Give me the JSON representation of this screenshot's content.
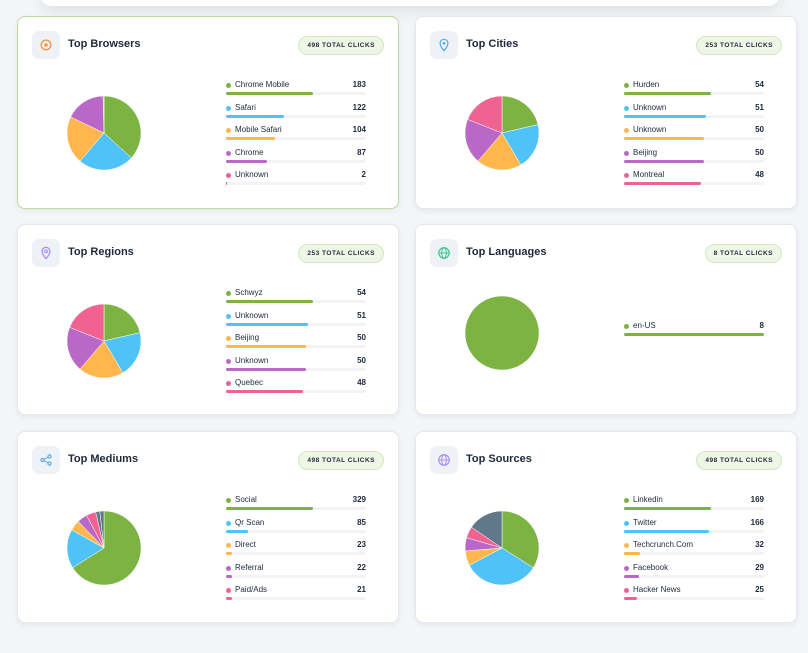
{
  "cards": [
    {
      "id": "browsers",
      "title": "Top Browsers",
      "badge": "498 TOTAL CLICKS",
      "icon": "compass-icon",
      "icon_color": "#f2994a",
      "items": [
        {
          "label": "Chrome Mobile",
          "value": 183,
          "color": "#7cb342"
        },
        {
          "label": "Safari",
          "value": 122,
          "color": "#4fc3f7"
        },
        {
          "label": "Mobile Safari",
          "value": 104,
          "color": "#ffb74d"
        },
        {
          "label": "Chrome",
          "value": 87,
          "color": "#ba68c8"
        },
        {
          "label": "Unknown",
          "value": 2,
          "color": "#f06292"
        }
      ]
    },
    {
      "id": "cities",
      "title": "Top Cities",
      "badge": "253 TOTAL CLICKS",
      "icon": "map-pin-icon",
      "icon_color": "#5aa9e6",
      "items": [
        {
          "label": "Hurden",
          "value": 54,
          "color": "#7cb342"
        },
        {
          "label": "Unknown",
          "value": 51,
          "color": "#4fc3f7"
        },
        {
          "label": "Unknown",
          "value": 50,
          "color": "#ffb74d"
        },
        {
          "label": "Beijing",
          "value": 50,
          "color": "#ba68c8"
        },
        {
          "label": "Montreal",
          "value": 48,
          "color": "#f06292"
        }
      ]
    },
    {
      "id": "regions",
      "title": "Top Regions",
      "badge": "253 TOTAL CLICKS",
      "icon": "location-icon",
      "icon_color": "#a78bfa",
      "items": [
        {
          "label": "Schwyz",
          "value": 54,
          "color": "#7cb342"
        },
        {
          "label": "Unknown",
          "value": 51,
          "color": "#4fc3f7"
        },
        {
          "label": "Beijing",
          "value": 50,
          "color": "#ffb74d"
        },
        {
          "label": "Unknown",
          "value": 50,
          "color": "#ba68c8"
        },
        {
          "label": "Quebec",
          "value": 48,
          "color": "#f06292"
        }
      ]
    },
    {
      "id": "languages",
      "title": "Top Languages",
      "badge": "8 TOTAL CLICKS",
      "icon": "globe-icon",
      "icon_color": "#34c38f",
      "items": [
        {
          "label": "en-US",
          "value": 8,
          "color": "#7cb342"
        }
      ]
    },
    {
      "id": "mediums",
      "title": "Top Mediums",
      "badge": "498 TOTAL CLICKS",
      "icon": "share-icon",
      "icon_color": "#5aa9e6",
      "items": [
        {
          "label": "Social",
          "value": 329,
          "color": "#7cb342"
        },
        {
          "label": "Qr Scan",
          "value": 85,
          "color": "#4fc3f7"
        },
        {
          "label": "Direct",
          "value": 23,
          "color": "#ffb74d"
        },
        {
          "label": "Referral",
          "value": 22,
          "color": "#ba68c8"
        },
        {
          "label": "Paid/Ads",
          "value": 21,
          "color": "#f06292"
        }
      ],
      "extra_slices": [
        {
          "value": 9,
          "color": "#60788a"
        },
        {
          "value": 9,
          "color": "#60788a"
        }
      ]
    },
    {
      "id": "sources",
      "title": "Top Sources",
      "badge": "498 TOTAL CLICKS",
      "icon": "globe-icon",
      "icon_color": "#a78bfa",
      "items": [
        {
          "label": "Linkedin",
          "value": 169,
          "color": "#7cb342"
        },
        {
          "label": "Twitter",
          "value": 166,
          "color": "#4fc3f7"
        },
        {
          "label": "Techcrunch.Com",
          "value": 32,
          "color": "#ffb74d"
        },
        {
          "label": "Facebook",
          "value": 29,
          "color": "#ba68c8"
        },
        {
          "label": "Hacker News",
          "value": 25,
          "color": "#f06292"
        }
      ],
      "extra_slices": [
        {
          "value": 77,
          "color": "#60788a"
        }
      ]
    }
  ]
}
